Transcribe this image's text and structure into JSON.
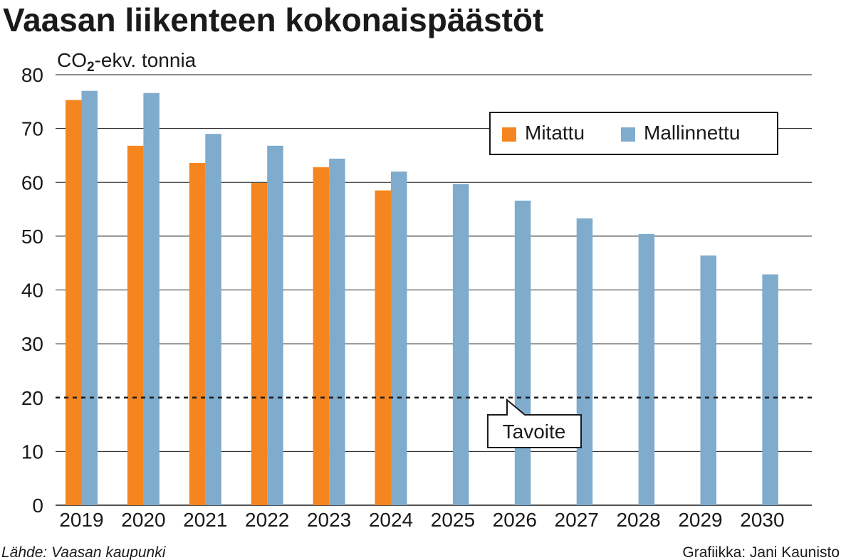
{
  "chart_data": {
    "type": "bar",
    "title": "Vaasan liikenteen kokonaispäästöt",
    "ylabel_main": "CO",
    "ylabel_sub": "2",
    "ylabel_rest": "-ekv. tonnia",
    "ylim": [
      0,
      80
    ],
    "yticks": [
      0,
      10,
      20,
      30,
      40,
      50,
      60,
      70,
      80
    ],
    "grid": true,
    "legend_position": "top-right",
    "categories": [
      "2019",
      "2020",
      "2021",
      "2022",
      "2023",
      "2024",
      "2025",
      "2026",
      "2027",
      "2028",
      "2029",
      "2030"
    ],
    "series": [
      {
        "name": "Mitattu",
        "color": "#f5861f",
        "values": [
          75.3,
          66.8,
          63.6,
          59.9,
          62.8,
          58.5,
          null,
          null,
          null,
          null,
          null,
          null
        ]
      },
      {
        "name": "Mallinnettu",
        "color": "#7fabcd",
        "values": [
          77.0,
          76.6,
          69.0,
          66.8,
          64.4,
          62.0,
          59.7,
          56.6,
          53.3,
          50.4,
          46.4,
          42.9
        ]
      }
    ],
    "target": {
      "label": "Tavoite",
      "value": 20
    }
  },
  "footer": {
    "source": "Lähde: Vaasan kaupunki",
    "credit": "Grafiikka: Jani Kaunisto"
  }
}
